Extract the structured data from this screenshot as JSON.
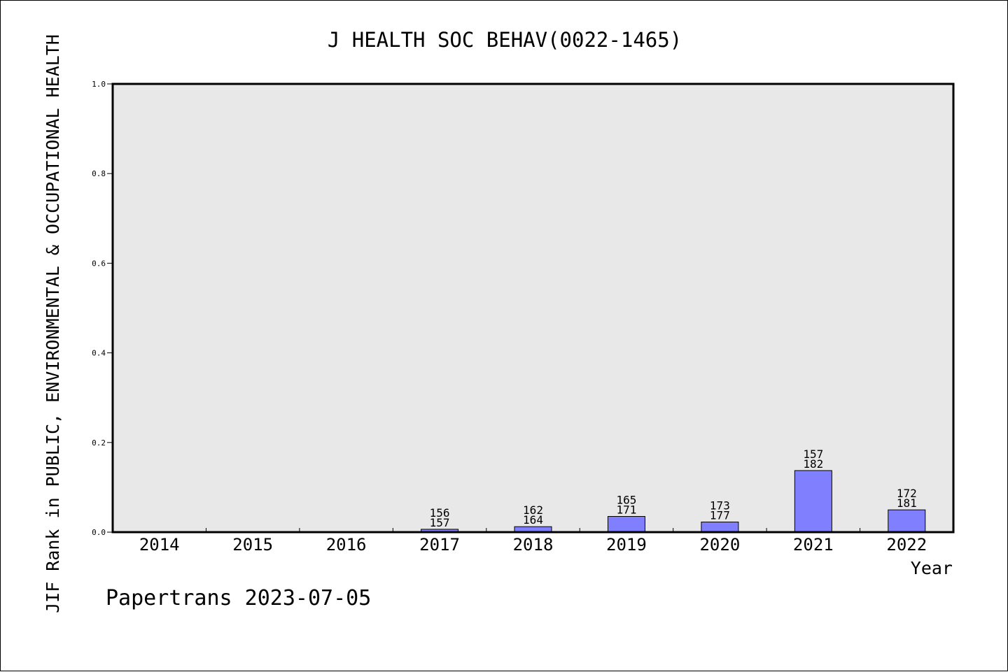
{
  "chart_data": {
    "type": "bar",
    "title": "J HEALTH SOC BEHAV(0022-1465)",
    "xlabel": "Year",
    "ylabel": "JIF Rank in PUBLIC, ENVIRONMENTAL & OCCUPATIONAL HEALTH",
    "ylim": [
      0,
      1.0
    ],
    "yticks": [
      "0.0",
      "0.2",
      "0.4",
      "0.6",
      "0.8",
      "1.0"
    ],
    "categories": [
      "2014",
      "2015",
      "2016",
      "2017",
      "2018",
      "2019",
      "2020",
      "2021",
      "2022"
    ],
    "values": [
      null,
      null,
      null,
      0.0064,
      0.0122,
      0.0351,
      0.0226,
      0.1374,
      0.0497
    ],
    "labels": [
      null,
      null,
      null,
      [
        "156",
        "157"
      ],
      [
        "162",
        "164"
      ],
      [
        "165",
        "171"
      ],
      [
        "173",
        "177"
      ],
      [
        "157",
        "182"
      ],
      [
        "172",
        "181"
      ]
    ],
    "bar_color": "#8080ff",
    "plot_background": "#e8e8e8",
    "grid": false
  },
  "footer": "Papertrans 2023-07-05"
}
